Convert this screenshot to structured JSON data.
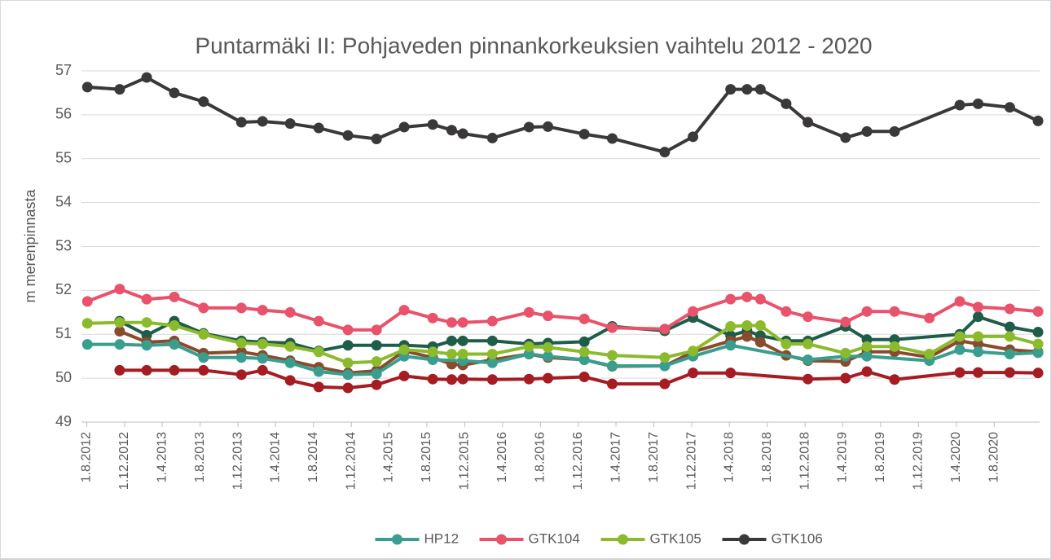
{
  "chart_data": {
    "type": "line",
    "title": "Puntarmäki II: Pohjaveden pinnankorkeuksien vaihtelu 2012 - 2020",
    "y_label": "m merenpinnasta",
    "ylim": [
      49,
      57
    ],
    "yticks": [
      49,
      50,
      51,
      52,
      53,
      54,
      55,
      56,
      57
    ],
    "xlim": [
      "2012-07-15",
      "2020-12-25"
    ],
    "xticks": [
      {
        "value": "2012-08-01",
        "label": "1.8.2012"
      },
      {
        "value": "2012-12-01",
        "label": "1.12.2012"
      },
      {
        "value": "2013-04-01",
        "label": "1.4.2013"
      },
      {
        "value": "2013-08-01",
        "label": "1.8.2013"
      },
      {
        "value": "2013-12-01",
        "label": "1.12.2013"
      },
      {
        "value": "2014-04-01",
        "label": "1.4.2014"
      },
      {
        "value": "2014-08-01",
        "label": "1.8.2014"
      },
      {
        "value": "2014-12-01",
        "label": "1.12.2014"
      },
      {
        "value": "2015-04-01",
        "label": "1.4.2015"
      },
      {
        "value": "2015-08-01",
        "label": "1.8.2015"
      },
      {
        "value": "2015-12-01",
        "label": "1.12.2015"
      },
      {
        "value": "2016-04-01",
        "label": "1.4.2016"
      },
      {
        "value": "2016-08-01",
        "label": "1.8.2016"
      },
      {
        "value": "2016-12-01",
        "label": "1.12.2016"
      },
      {
        "value": "2017-04-01",
        "label": "1.4.2017"
      },
      {
        "value": "2017-08-01",
        "label": "1.8.2017"
      },
      {
        "value": "2017-12-01",
        "label": "1.12.2017"
      },
      {
        "value": "2018-04-01",
        "label": "1.4.2018"
      },
      {
        "value": "2018-08-01",
        "label": "1.8.2018"
      },
      {
        "value": "2018-12-01",
        "label": "1.12.2018"
      },
      {
        "value": "2019-04-01",
        "label": "1.4.2019"
      },
      {
        "value": "2019-08-01",
        "label": "1.8.2019"
      },
      {
        "value": "2019-12-01",
        "label": "1.12.2019"
      },
      {
        "value": "2020-04-01",
        "label": "1.4.2020"
      },
      {
        "value": "2020-08-01",
        "label": "1.8.2020"
      }
    ],
    "grid": true,
    "legend": "bottom",
    "series": [
      {
        "color": "#1f5c4a",
        "x": [
          "2012-11-15",
          "2013-02-10",
          "2013-05-10",
          "2013-08-12",
          "2013-12-12",
          "2014-02-18",
          "2014-05-18",
          "2014-08-18",
          "2014-11-20",
          "2015-02-20",
          "2015-05-20",
          "2015-08-20",
          "2015-10-20",
          "2015-11-25",
          "2016-02-28",
          "2016-06-25",
          "2016-08-25",
          "2016-12-20",
          "2017-03-20",
          "2017-09-05",
          "2017-12-05",
          "2018-04-05",
          "2018-05-28",
          "2018-07-10",
          "2018-10-01",
          "2018-12-10",
          "2019-04-10",
          "2019-06-18",
          "2019-09-15",
          "2020-04-12",
          "2020-06-10",
          "2020-09-20",
          "2020-12-20"
        ],
        "values": [
          51.3,
          50.98,
          51.3,
          51.02,
          50.85,
          50.82,
          50.8,
          50.62,
          50.75,
          50.75,
          50.75,
          50.72,
          50.85,
          50.85,
          50.85,
          50.78,
          50.8,
          50.83,
          51.18,
          51.08,
          51.38,
          50.97,
          51.08,
          50.97,
          50.85,
          50.85,
          51.18,
          50.88,
          50.88,
          51.0,
          51.4,
          51.17,
          51.05
        ]
      },
      {
        "color": "#8a4b2d",
        "x": [
          "2012-11-15",
          "2013-02-10",
          "2013-05-10",
          "2013-08-12",
          "2013-12-12",
          "2014-02-18",
          "2014-05-18",
          "2014-08-18",
          "2014-11-20",
          "2015-02-20",
          "2015-05-20",
          "2015-08-20",
          "2015-10-20",
          "2015-11-25",
          "2016-02-28",
          "2016-06-25",
          "2016-08-25",
          "2016-12-20",
          "2017-03-20",
          "2017-09-05",
          "2017-12-05",
          "2018-04-05",
          "2018-05-28",
          "2018-07-10",
          "2018-10-01",
          "2018-12-10",
          "2019-04-10",
          "2019-06-18",
          "2019-09-15",
          "2020-01-05",
          "2020-04-12",
          "2020-06-10",
          "2020-09-20",
          "2020-12-20"
        ],
        "values": [
          51.07,
          50.82,
          50.85,
          50.57,
          50.6,
          50.52,
          50.4,
          50.25,
          50.12,
          50.17,
          50.62,
          50.47,
          50.32,
          50.3,
          50.42,
          50.55,
          50.47,
          50.42,
          50.27,
          50.28,
          50.6,
          50.85,
          50.95,
          50.82,
          50.52,
          50.4,
          50.38,
          50.6,
          50.6,
          50.48,
          50.85,
          50.78,
          50.65,
          50.6
        ]
      },
      {
        "color": "#a51c22",
        "x": [
          "2012-11-15",
          "2013-02-10",
          "2013-05-10",
          "2013-08-12",
          "2013-12-12",
          "2014-02-18",
          "2014-05-18",
          "2014-08-18",
          "2014-11-20",
          "2015-02-20",
          "2015-05-20",
          "2015-08-20",
          "2015-10-20",
          "2015-11-25",
          "2016-02-28",
          "2016-06-25",
          "2016-08-25",
          "2016-12-20",
          "2017-03-20",
          "2017-09-05",
          "2017-12-05",
          "2018-04-05",
          "2018-12-10",
          "2019-04-10",
          "2019-06-18",
          "2019-09-15",
          "2020-04-12",
          "2020-06-10",
          "2020-09-20",
          "2020-12-20"
        ],
        "values": [
          50.18,
          50.18,
          50.18,
          50.18,
          50.08,
          50.18,
          49.95,
          49.8,
          49.78,
          49.85,
          50.05,
          49.98,
          49.97,
          49.98,
          49.97,
          49.98,
          50.0,
          50.03,
          49.87,
          49.87,
          50.12,
          50.12,
          49.98,
          50.0,
          50.15,
          49.97,
          50.13,
          50.13,
          50.13,
          50.12
        ]
      },
      {
        "name": "HP12",
        "color": "#3a9e8f",
        "x": [
          "2012-08-03",
          "2012-11-15",
          "2013-02-10",
          "2013-05-10",
          "2013-08-12",
          "2013-12-12",
          "2014-02-18",
          "2014-05-18",
          "2014-08-18",
          "2014-11-20",
          "2015-02-20",
          "2015-05-20",
          "2015-08-20",
          "2015-11-25",
          "2016-02-28",
          "2016-06-25",
          "2016-08-25",
          "2016-12-20",
          "2017-03-20",
          "2017-09-05",
          "2017-12-05",
          "2018-04-05",
          "2018-12-10",
          "2019-04-10",
          "2019-06-18",
          "2020-01-05",
          "2020-04-12",
          "2020-06-10",
          "2020-09-20",
          "2020-12-20"
        ],
        "values": [
          50.77,
          50.77,
          50.75,
          50.77,
          50.47,
          50.47,
          50.45,
          50.35,
          50.15,
          50.08,
          50.1,
          50.5,
          50.42,
          50.4,
          50.35,
          50.55,
          50.5,
          50.42,
          50.28,
          50.28,
          50.5,
          50.75,
          50.42,
          50.5,
          50.5,
          50.4,
          50.65,
          50.6,
          50.55,
          50.58
        ]
      },
      {
        "name": "GTK104",
        "color": "#e8536b",
        "x": [
          "2012-08-03",
          "2012-11-15",
          "2013-02-10",
          "2013-05-10",
          "2013-08-12",
          "2013-12-12",
          "2014-02-18",
          "2014-05-18",
          "2014-08-18",
          "2014-11-20",
          "2015-02-20",
          "2015-05-20",
          "2015-08-20",
          "2015-10-20",
          "2015-11-25",
          "2016-02-28",
          "2016-06-25",
          "2016-08-25",
          "2016-12-20",
          "2017-03-20",
          "2017-09-05",
          "2017-12-05",
          "2018-04-05",
          "2018-05-28",
          "2018-07-10",
          "2018-10-01",
          "2018-12-10",
          "2019-04-10",
          "2019-06-18",
          "2019-09-15",
          "2020-01-05",
          "2020-04-12",
          "2020-06-10",
          "2020-09-20",
          "2020-12-20"
        ],
        "values": [
          51.75,
          52.03,
          51.8,
          51.85,
          51.6,
          51.6,
          51.55,
          51.5,
          51.3,
          51.1,
          51.1,
          51.55,
          51.37,
          51.27,
          51.27,
          51.3,
          51.5,
          51.42,
          51.35,
          51.15,
          51.12,
          51.52,
          51.8,
          51.85,
          51.8,
          51.52,
          51.4,
          51.28,
          51.52,
          51.52,
          51.37,
          51.75,
          51.62,
          51.58,
          51.52
        ]
      },
      {
        "name": "GTK105",
        "color": "#8bbb2c",
        "x": [
          "2012-08-03",
          "2012-11-15",
          "2013-02-10",
          "2013-05-10",
          "2013-08-12",
          "2013-12-12",
          "2014-02-18",
          "2014-05-18",
          "2014-08-18",
          "2014-11-20",
          "2015-02-20",
          "2015-05-20",
          "2015-08-20",
          "2015-10-20",
          "2015-11-25",
          "2016-02-28",
          "2016-06-25",
          "2016-08-25",
          "2016-12-20",
          "2017-03-20",
          "2017-09-05",
          "2017-12-05",
          "2018-04-05",
          "2018-05-28",
          "2018-07-10",
          "2018-10-01",
          "2018-12-10",
          "2019-04-10",
          "2019-06-18",
          "2019-09-15",
          "2020-01-05",
          "2020-04-12",
          "2020-06-10",
          "2020-09-20",
          "2020-12-20"
        ],
        "values": [
          51.25,
          51.27,
          51.27,
          51.2,
          51.0,
          50.8,
          50.78,
          50.72,
          50.6,
          50.35,
          50.38,
          50.65,
          50.6,
          50.55,
          50.55,
          50.55,
          50.72,
          50.7,
          50.6,
          50.52,
          50.47,
          50.62,
          51.18,
          51.2,
          51.2,
          50.78,
          50.78,
          50.57,
          50.72,
          50.72,
          50.55,
          50.95,
          50.95,
          50.95,
          50.78
        ]
      },
      {
        "name": "GTK106",
        "color": "#3b3838",
        "x": [
          "2012-08-03",
          "2012-11-15",
          "2013-02-10",
          "2013-05-10",
          "2013-08-12",
          "2013-12-12",
          "2014-02-18",
          "2014-05-18",
          "2014-08-18",
          "2014-11-20",
          "2015-02-20",
          "2015-05-20",
          "2015-08-20",
          "2015-10-20",
          "2015-11-25",
          "2016-02-28",
          "2016-06-25",
          "2016-08-25",
          "2016-12-20",
          "2017-03-20",
          "2017-09-05",
          "2017-12-05",
          "2018-04-05",
          "2018-05-28",
          "2018-07-10",
          "2018-10-01",
          "2018-12-10",
          "2019-04-10",
          "2019-06-18",
          "2019-09-15",
          "2020-04-12",
          "2020-06-10",
          "2020-09-20",
          "2020-12-20"
        ],
        "values": [
          56.63,
          56.58,
          56.85,
          56.5,
          56.3,
          55.83,
          55.85,
          55.8,
          55.7,
          55.53,
          55.45,
          55.72,
          55.78,
          55.65,
          55.57,
          55.47,
          55.72,
          55.73,
          55.56,
          55.46,
          55.15,
          55.5,
          56.58,
          56.58,
          56.58,
          56.25,
          55.83,
          55.48,
          55.62,
          55.62,
          56.22,
          56.25,
          56.17,
          55.86
        ]
      }
    ]
  }
}
